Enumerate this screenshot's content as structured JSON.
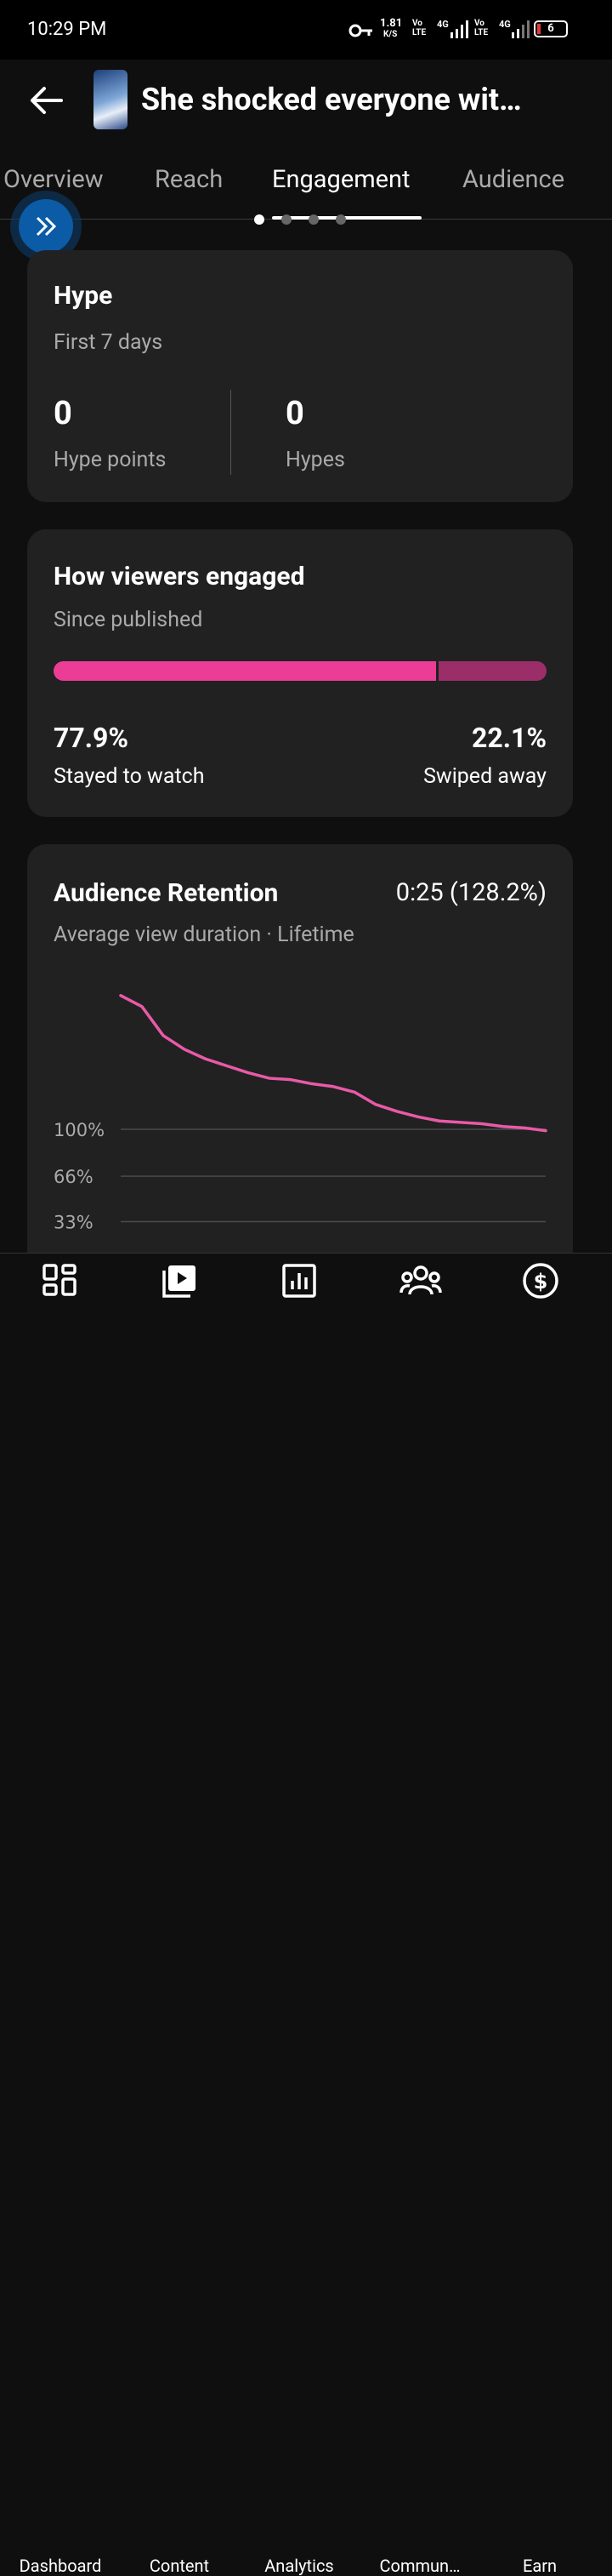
{
  "status_bar": {
    "time": "10:29 PM",
    "speed": "1.81",
    "speed_unit": "K/S",
    "volte_1": "Vo\nLTE",
    "net_1": "4G",
    "volte_2": "Vo\nLTE",
    "net_2": "4G",
    "battery": "6"
  },
  "header": {
    "title": "She shocked everyone wit…"
  },
  "tabs": [
    "Overview",
    "Reach",
    "Engagement",
    "Audience"
  ],
  "active_tab": 2,
  "hype": {
    "title": "Hype",
    "subtitle": "First 7 days",
    "stats": [
      {
        "value": 0,
        "label": "Hype points"
      },
      {
        "value": 0,
        "label": "Hypes"
      }
    ]
  },
  "engagement": {
    "title": "How viewers engaged",
    "subtitle": "Since published",
    "values": [
      77.9,
      22.1
    ],
    "value_labels": [
      "77.9%",
      "22.1%"
    ],
    "labels": [
      "Stayed to watch",
      "Swiped away"
    ],
    "colors": [
      "#ec3d96",
      "#9b2e69"
    ]
  },
  "retention": {
    "title": "Audience Retention",
    "summary": "0:25 (128.2%)",
    "subtitle": "Average view duration · Lifetime",
    "type": "line",
    "color": "#e85aa8",
    "ylim": [
      0,
      200
    ],
    "yticks": [
      {
        "value": 100,
        "label": "100%"
      },
      {
        "value": 66,
        "label": "66%"
      },
      {
        "value": 33,
        "label": "33%"
      }
    ],
    "values": [
      197,
      189,
      168,
      158,
      151,
      146,
      141,
      137,
      136,
      133,
      131,
      127,
      118,
      113,
      109,
      106,
      105,
      104,
      102,
      101,
      99
    ]
  },
  "nav": [
    "Dashboard",
    "Content",
    "Analytics",
    "Commun…",
    "Earn"
  ]
}
